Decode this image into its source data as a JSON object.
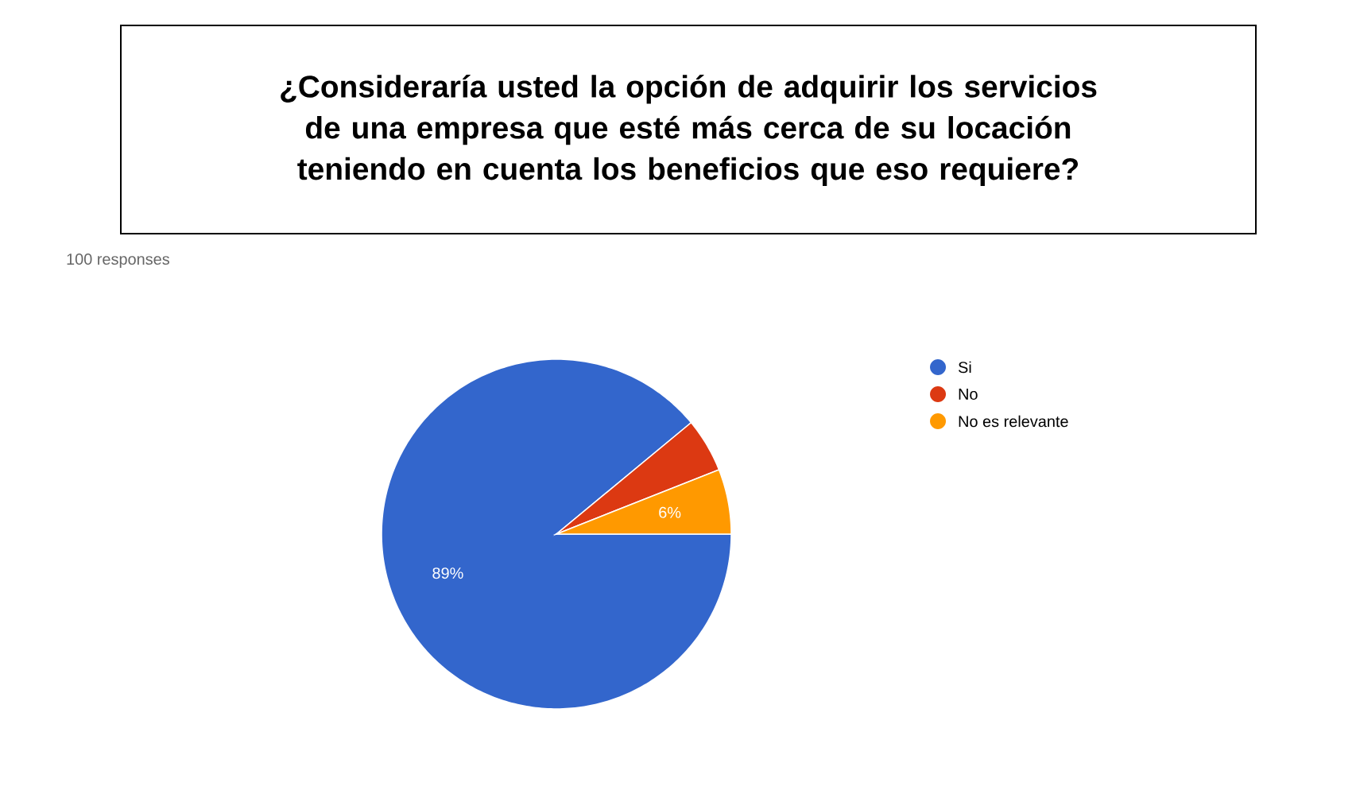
{
  "chart_data": {
    "type": "pie",
    "title": "¿Consideraría usted la opción de adquirir los servicios de una empresa que esté más cerca de su locación teniendo en cuenta los beneficios que eso requiere?",
    "subtitle": "100 responses",
    "categories": [
      "Si",
      "No",
      "No es relevante"
    ],
    "values": [
      89,
      5,
      6
    ],
    "colors": [
      "#3366cc",
      "#dc3912",
      "#ff9900"
    ],
    "value_labels": [
      "89%",
      null,
      "6%"
    ],
    "legend": "right"
  }
}
